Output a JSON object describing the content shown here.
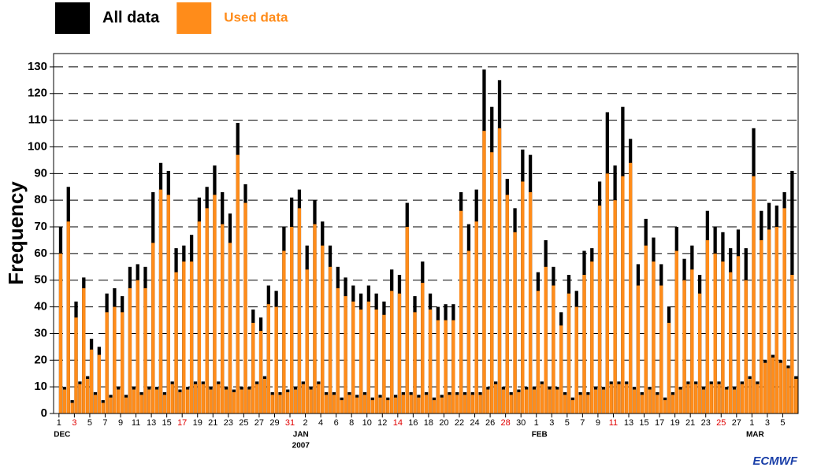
{
  "chart_data": {
    "type": "bar",
    "ylabel": "Frequency",
    "logo": "ECMWF",
    "legend": "top-left",
    "grid": true,
    "xlim": [
      -0.7,
      96
    ],
    "ylim": [
      0,
      135
    ],
    "yticks": [
      0,
      10,
      20,
      30,
      40,
      50,
      60,
      70,
      80,
      90,
      100,
      110,
      120,
      130
    ],
    "xticks": [
      {
        "value": 0,
        "label": "1"
      },
      {
        "value": 2,
        "label": "3"
      },
      {
        "value": 4,
        "label": "5"
      },
      {
        "value": 6,
        "label": "7"
      },
      {
        "value": 8,
        "label": "9"
      },
      {
        "value": 10,
        "label": "11"
      },
      {
        "value": 12,
        "label": "13"
      },
      {
        "value": 14,
        "label": "15"
      },
      {
        "value": 16,
        "label": "17"
      },
      {
        "value": 18,
        "label": "19"
      },
      {
        "value": 20,
        "label": "21"
      },
      {
        "value": 22,
        "label": "23"
      },
      {
        "value": 24,
        "label": "25"
      },
      {
        "value": 26,
        "label": "27"
      },
      {
        "value": 28,
        "label": "29"
      },
      {
        "value": 30,
        "label": "31"
      },
      {
        "value": 32,
        "label": "2"
      },
      {
        "value": 34,
        "label": "4"
      },
      {
        "value": 36,
        "label": "6"
      },
      {
        "value": 38,
        "label": "8"
      },
      {
        "value": 40,
        "label": "10"
      },
      {
        "value": 42,
        "label": "12"
      },
      {
        "value": 44,
        "label": "14"
      },
      {
        "value": 46,
        "label": "16"
      },
      {
        "value": 48,
        "label": "18"
      },
      {
        "value": 50,
        "label": "20"
      },
      {
        "value": 52,
        "label": "22"
      },
      {
        "value": 54,
        "label": "24"
      },
      {
        "value": 56,
        "label": "26"
      },
      {
        "value": 58,
        "label": "28"
      },
      {
        "value": 60,
        "label": "30"
      },
      {
        "value": 62,
        "label": "1"
      },
      {
        "value": 64,
        "label": "3"
      },
      {
        "value": 66,
        "label": "5"
      },
      {
        "value": 68,
        "label": "7"
      },
      {
        "value": 70,
        "label": "9"
      },
      {
        "value": 72,
        "label": "11"
      },
      {
        "value": 74,
        "label": "13"
      },
      {
        "value": 76,
        "label": "15"
      },
      {
        "value": 78,
        "label": "17"
      },
      {
        "value": 80,
        "label": "19"
      },
      {
        "value": 82,
        "label": "21"
      },
      {
        "value": 84,
        "label": "23"
      },
      {
        "value": 86,
        "label": "25"
      },
      {
        "value": 88,
        "label": "27"
      },
      {
        "value": 90,
        "label": "1"
      },
      {
        "value": 92,
        "label": "3"
      },
      {
        "value": 94,
        "label": "5"
      }
    ],
    "highlighted_xticks": [
      2,
      16,
      30,
      44,
      58,
      72,
      86
    ],
    "highlight_color": "#e00000",
    "month_labels": [
      {
        "value": 0,
        "label": "DEC"
      },
      {
        "value": 31,
        "label": "JAN"
      },
      {
        "value": 62,
        "label": "FEB"
      },
      {
        "value": 90,
        "label": "MAR"
      }
    ],
    "year_label": {
      "value": 31,
      "label": "2007"
    },
    "x": [
      0,
      0.5,
      1,
      1.5,
      2,
      2.5,
      3,
      3.5,
      4,
      4.5,
      5,
      5.5,
      6,
      6.5,
      7,
      7.5,
      8,
      8.5,
      9,
      9.5,
      10,
      10.5,
      11,
      11.5,
      12,
      12.5,
      13,
      13.5,
      14,
      14.5,
      15,
      15.5,
      16,
      16.5,
      17,
      17.5,
      18,
      18.5,
      19,
      19.5,
      20,
      20.5,
      21,
      21.5,
      22,
      22.5,
      23,
      23.5,
      24,
      24.5,
      25,
      25.5,
      26,
      26.5,
      27,
      27.5,
      28,
      28.5,
      29,
      29.5,
      30,
      30.5,
      31,
      31.5,
      32,
      32.5,
      33,
      33.5,
      34,
      34.5,
      35,
      35.5,
      36,
      36.5,
      37,
      37.5,
      38,
      38.5,
      39,
      39.5,
      40,
      40.5,
      41,
      41.5,
      42,
      42.5,
      43,
      43.5,
      44,
      44.5,
      45,
      45.5,
      46,
      46.5,
      47,
      47.5,
      48,
      48.5,
      49,
      49.5,
      50,
      50.5,
      51,
      51.5,
      52,
      52.5,
      53,
      53.5,
      54,
      54.5,
      55,
      55.5,
      56,
      56.5,
      57,
      57.5,
      58,
      58.5,
      59,
      59.5,
      60,
      60.5,
      61,
      61.5,
      62,
      62.5,
      63,
      63.5,
      64,
      64.5,
      65,
      65.5,
      66,
      66.5,
      67,
      67.5,
      68,
      68.5,
      69,
      69.5,
      70,
      70.5,
      71,
      71.5,
      72,
      72.5,
      73,
      73.5,
      74,
      74.5,
      75,
      75.5,
      76,
      76.5,
      77,
      77.5,
      78,
      78.5,
      79,
      79.5,
      80,
      80.5,
      81,
      81.5,
      82,
      82.5,
      83,
      83.5,
      84,
      84.5,
      85,
      85.5,
      86,
      86.5,
      87,
      87.5,
      88,
      88.5,
      89,
      89.5,
      90,
      90.5,
      91,
      91.5,
      92,
      92.5,
      93,
      93.5,
      94,
      94.5,
      95,
      95.5
    ],
    "series": [
      {
        "name": "All data",
        "color": "#000000",
        "values": [
          70,
          10,
          85,
          5,
          42,
          12,
          51,
          14,
          28,
          8,
          25,
          5,
          45,
          7,
          47,
          10,
          44,
          7,
          55,
          10,
          56,
          8,
          55,
          10,
          83,
          10,
          94,
          8,
          91,
          12,
          62,
          9,
          63,
          10,
          67,
          12,
          81,
          12,
          85,
          10,
          93,
          12,
          83,
          10,
          75,
          9,
          109,
          10,
          86,
          10,
          39,
          12,
          36,
          14,
          48,
          8,
          46,
          8,
          70,
          9,
          81,
          10,
          84,
          12,
          63,
          10,
          80,
          12,
          72,
          8,
          63,
          8,
          55,
          6,
          51,
          8,
          48,
          7,
          45,
          8,
          48,
          6,
          45,
          7,
          42,
          6,
          54,
          7,
          52,
          8,
          79,
          8,
          44,
          7,
          57,
          8,
          45,
          6,
          40,
          7,
          41,
          8,
          41,
          8,
          83,
          8,
          71,
          8,
          84,
          8,
          129,
          10,
          115,
          12,
          125,
          10,
          88,
          8,
          77,
          9,
          99,
          10,
          97,
          10,
          53,
          12,
          65,
          10,
          55,
          10,
          38,
          8,
          52,
          6,
          46,
          8,
          61,
          8,
          62,
          10,
          87,
          10,
          113,
          12,
          93,
          12,
          115,
          12,
          103,
          10,
          56,
          8,
          73,
          10,
          66,
          8,
          56,
          6,
          40,
          8,
          70,
          10,
          58,
          12,
          63,
          12,
          52,
          10,
          76,
          12,
          70,
          12,
          68,
          10,
          62,
          10,
          69,
          12,
          62,
          14,
          107,
          12,
          76,
          20,
          79,
          22,
          78,
          20,
          83,
          18,
          91,
          14
        ]
      },
      {
        "name": "Used data",
        "color": "#ff8c1a",
        "values": [
          60,
          9,
          72,
          4,
          36,
          11,
          47,
          13,
          24,
          7,
          22,
          4,
          38,
          6,
          40,
          9,
          38,
          6,
          47,
          9,
          50,
          7,
          47,
          9,
          64,
          9,
          84,
          7,
          82,
          11,
          53,
          8,
          57,
          9,
          57,
          11,
          72,
          11,
          77,
          9,
          82,
          11,
          71,
          9,
          64,
          8,
          97,
          9,
          79,
          9,
          34,
          11,
          31,
          13,
          41,
          7,
          40,
          7,
          61,
          8,
          70,
          9,
          77,
          11,
          54,
          9,
          71,
          11,
          63,
          7,
          55,
          7,
          47,
          5,
          44,
          7,
          42,
          6,
          39,
          7,
          42,
          5,
          39,
          6,
          37,
          5,
          46,
          6,
          45,
          7,
          70,
          7,
          38,
          6,
          49,
          7,
          39,
          5,
          35,
          6,
          35,
          7,
          35,
          7,
          76,
          7,
          61,
          7,
          72,
          7,
          106,
          9,
          98,
          11,
          107,
          9,
          82,
          7,
          68,
          8,
          87,
          9,
          83,
          9,
          46,
          11,
          55,
          9,
          48,
          9,
          33,
          7,
          45,
          5,
          40,
          7,
          52,
          7,
          57,
          9,
          78,
          9,
          90,
          11,
          80,
          11,
          89,
          11,
          94,
          9,
          48,
          7,
          63,
          9,
          57,
          7,
          48,
          5,
          34,
          7,
          61,
          9,
          50,
          11,
          54,
          11,
          45,
          9,
          65,
          11,
          60,
          11,
          57,
          9,
          53,
          9,
          59,
          11,
          50,
          13,
          89,
          11,
          65,
          19,
          69,
          21,
          70,
          19,
          77,
          17,
          52,
          13
        ]
      }
    ]
  }
}
